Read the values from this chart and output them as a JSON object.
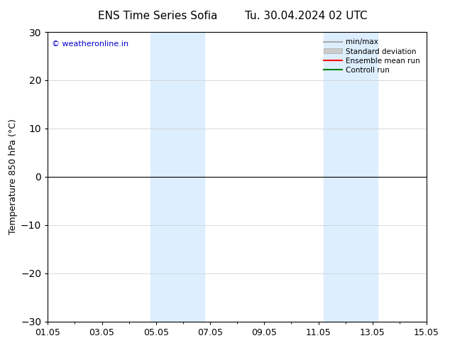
{
  "title_left": "ENS Time Series Sofia",
  "title_right": "Tu. 30.04.2024 02 UTC",
  "ylabel": "Temperature 850 hPa (°C)",
  "ylim": [
    -30,
    30
  ],
  "yticks": [
    -30,
    -20,
    -10,
    0,
    10,
    20,
    30
  ],
  "xlim": [
    0,
    14
  ],
  "xtick_labels": [
    "01.05",
    "03.05",
    "05.05",
    "07.05",
    "09.05",
    "11.05",
    "13.05",
    "15.05"
  ],
  "xtick_positions": [
    0,
    2,
    4,
    6,
    8,
    10,
    12,
    14
  ],
  "watermark": "© weatheronline.in",
  "shaded_bands": [
    {
      "xmin": 3.8,
      "xmax": 5.8,
      "color": "#ddeeff"
    },
    {
      "xmin": 10.2,
      "xmax": 12.2,
      "color": "#ddeeff"
    }
  ],
  "legend_items": [
    {
      "label": "min/max",
      "color": "#aaaaaa",
      "lw": 1.5,
      "style": "-"
    },
    {
      "label": "Standard deviation",
      "color": "#cccccc",
      "lw": 6,
      "style": "-"
    },
    {
      "label": "Ensemble mean run",
      "color": "#ff0000",
      "lw": 1.5,
      "style": "-"
    },
    {
      "label": "Controll run",
      "color": "#008000",
      "lw": 1.5,
      "style": "-"
    }
  ],
  "bg_color": "#ffffff",
  "grid_color": "#cccccc",
  "fig_width": 6.34,
  "fig_height": 4.9,
  "dpi": 100
}
